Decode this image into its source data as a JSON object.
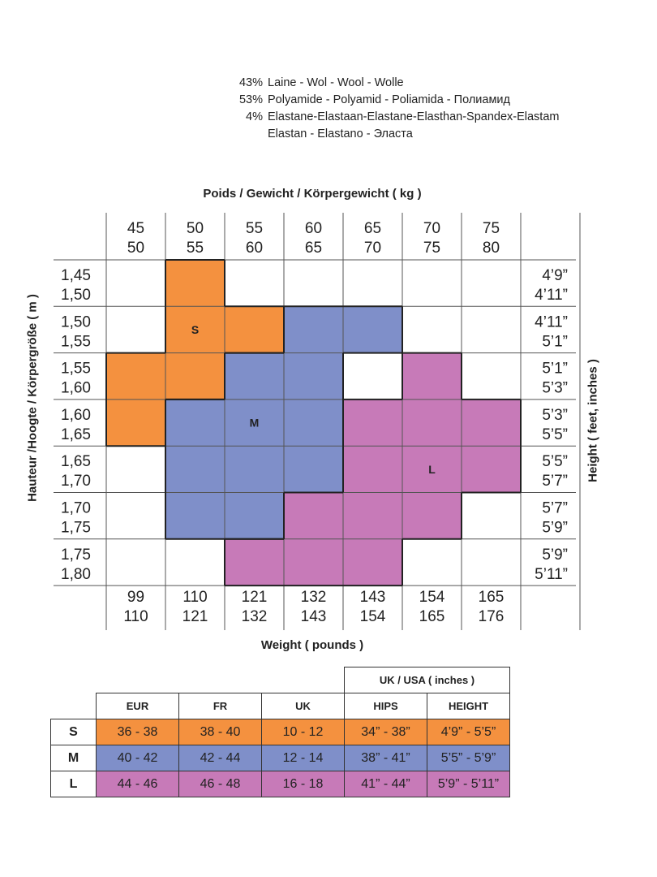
{
  "composition": [
    {
      "pct": "43%",
      "text": "Laine - Wol - Wool - Wolle"
    },
    {
      "pct": "53%",
      "text": "Polyamide - Polyamid - Poliamida - Полиамид"
    },
    {
      "pct": "4%",
      "text": "Elastane-Elastaan-Elastane-Elasthan-Spandex-Elastam"
    },
    {
      "pct": "",
      "text": "Elastan - Elastano - Эласта"
    }
  ],
  "chart": {
    "title": "Poids / Gewicht / Körpergewicht ( kg )",
    "xlabel": "Weight ( pounds )",
    "ylabel_left": "Hauteur /Hoogte / Körpergröße ( m )",
    "ylabel_right": "Height ( feet, inches )",
    "kg_columns": [
      [
        "45",
        "50"
      ],
      [
        "50",
        "55"
      ],
      [
        "55",
        "60"
      ],
      [
        "60",
        "65"
      ],
      [
        "65",
        "70"
      ],
      [
        "70",
        "75"
      ],
      [
        "75",
        "80"
      ]
    ],
    "lb_columns": [
      [
        "99",
        "110"
      ],
      [
        "110",
        "121"
      ],
      [
        "121",
        "132"
      ],
      [
        "132",
        "143"
      ],
      [
        "143",
        "154"
      ],
      [
        "154",
        "165"
      ],
      [
        "165",
        "176"
      ]
    ],
    "m_rows": [
      [
        "1,45",
        "1,50"
      ],
      [
        "1,50",
        "1,55"
      ],
      [
        "1,55",
        "1,60"
      ],
      [
        "1,60",
        "1,65"
      ],
      [
        "1,65",
        "1,70"
      ],
      [
        "1,70",
        "1,75"
      ],
      [
        "1,75",
        "1,80"
      ]
    ],
    "ft_rows": [
      [
        "4’9”",
        "4’11”"
      ],
      [
        "4’11”",
        "5’1”"
      ],
      [
        "5’1”",
        "5’3”"
      ],
      [
        "5’3”",
        "5’5”"
      ],
      [
        "5’5”",
        "5’7”"
      ],
      [
        "5’7”",
        "5’9”"
      ],
      [
        "5’9”",
        "5’11”"
      ]
    ],
    "size_grid": [
      [
        "",
        "S",
        "",
        "",
        "",
        "",
        ""
      ],
      [
        "",
        "S",
        "S",
        "M",
        "M",
        "",
        ""
      ],
      [
        "S",
        "S",
        "M",
        "M",
        "",
        "L",
        ""
      ],
      [
        "S",
        "M",
        "M",
        "M",
        "L",
        "L",
        "L"
      ],
      [
        "",
        "M",
        "M",
        "M",
        "L",
        "L",
        "L"
      ],
      [
        "",
        "M",
        "M",
        "L",
        "L",
        "L",
        ""
      ],
      [
        "",
        "",
        "L",
        "L",
        "L",
        "",
        ""
      ]
    ],
    "size_labels": [
      {
        "text": "S",
        "row": 1,
        "col": 1
      },
      {
        "text": "M",
        "row": 3,
        "col": 2
      },
      {
        "text": "L",
        "row": 4,
        "col": 5
      }
    ],
    "colors": {
      "S": "#f4913f",
      "M": "#7f8fc9",
      "L": "#c77ab8"
    }
  },
  "table": {
    "group_header": "UK / USA ( inches )",
    "headers": [
      "EUR",
      "FR",
      "UK",
      "HIPS",
      "HEIGHT"
    ],
    "rows": [
      {
        "size": "S",
        "cells": [
          "36 - 38",
          "38 - 40",
          "10 - 12",
          "34” - 38”",
          "4’9” - 5’5”"
        ],
        "color": "#f4913f"
      },
      {
        "size": "M",
        "cells": [
          "40 - 42",
          "42 - 44",
          "12 - 14",
          "38” - 41”",
          "5’5” - 5’9”"
        ],
        "color": "#7f8fc9"
      },
      {
        "size": "L",
        "cells": [
          "44 - 46",
          "46 - 48",
          "16 - 18",
          "41” - 44”",
          "5’9” - 5’11”"
        ],
        "color": "#c77ab8"
      }
    ]
  }
}
